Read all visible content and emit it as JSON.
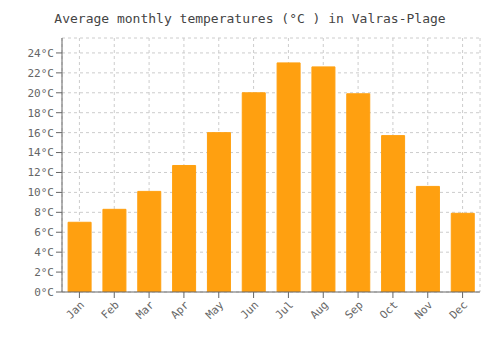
{
  "chart_data": {
    "type": "bar",
    "title": "Average monthly temperatures (°C ) in Valras-Plage",
    "categories": [
      "Jan",
      "Feb",
      "Mar",
      "Apr",
      "May",
      "Jun",
      "Jul",
      "Aug",
      "Sep",
      "Oct",
      "Nov",
      "Dec"
    ],
    "values": [
      7.0,
      8.3,
      10.1,
      12.7,
      16.0,
      20.0,
      23.0,
      22.6,
      19.9,
      15.7,
      10.6,
      7.9
    ],
    "color": "#FFA010",
    "ylim": [
      0,
      25.5
    ],
    "yticks": [
      {
        "value": 0,
        "label": "0°C"
      },
      {
        "value": 2,
        "label": "2°C"
      },
      {
        "value": 4,
        "label": "4°C"
      },
      {
        "value": 6,
        "label": "6°C"
      },
      {
        "value": 8,
        "label": "8°C"
      },
      {
        "value": 10,
        "label": "10°C"
      },
      {
        "value": 12,
        "label": "12°C"
      },
      {
        "value": 14,
        "label": "14°C"
      },
      {
        "value": 16,
        "label": "16°C"
      },
      {
        "value": 18,
        "label": "18°C"
      },
      {
        "value": 20,
        "label": "20°C"
      },
      {
        "value": 22,
        "label": "22°C"
      },
      {
        "value": 24,
        "label": "24°C"
      }
    ],
    "grid": true
  }
}
